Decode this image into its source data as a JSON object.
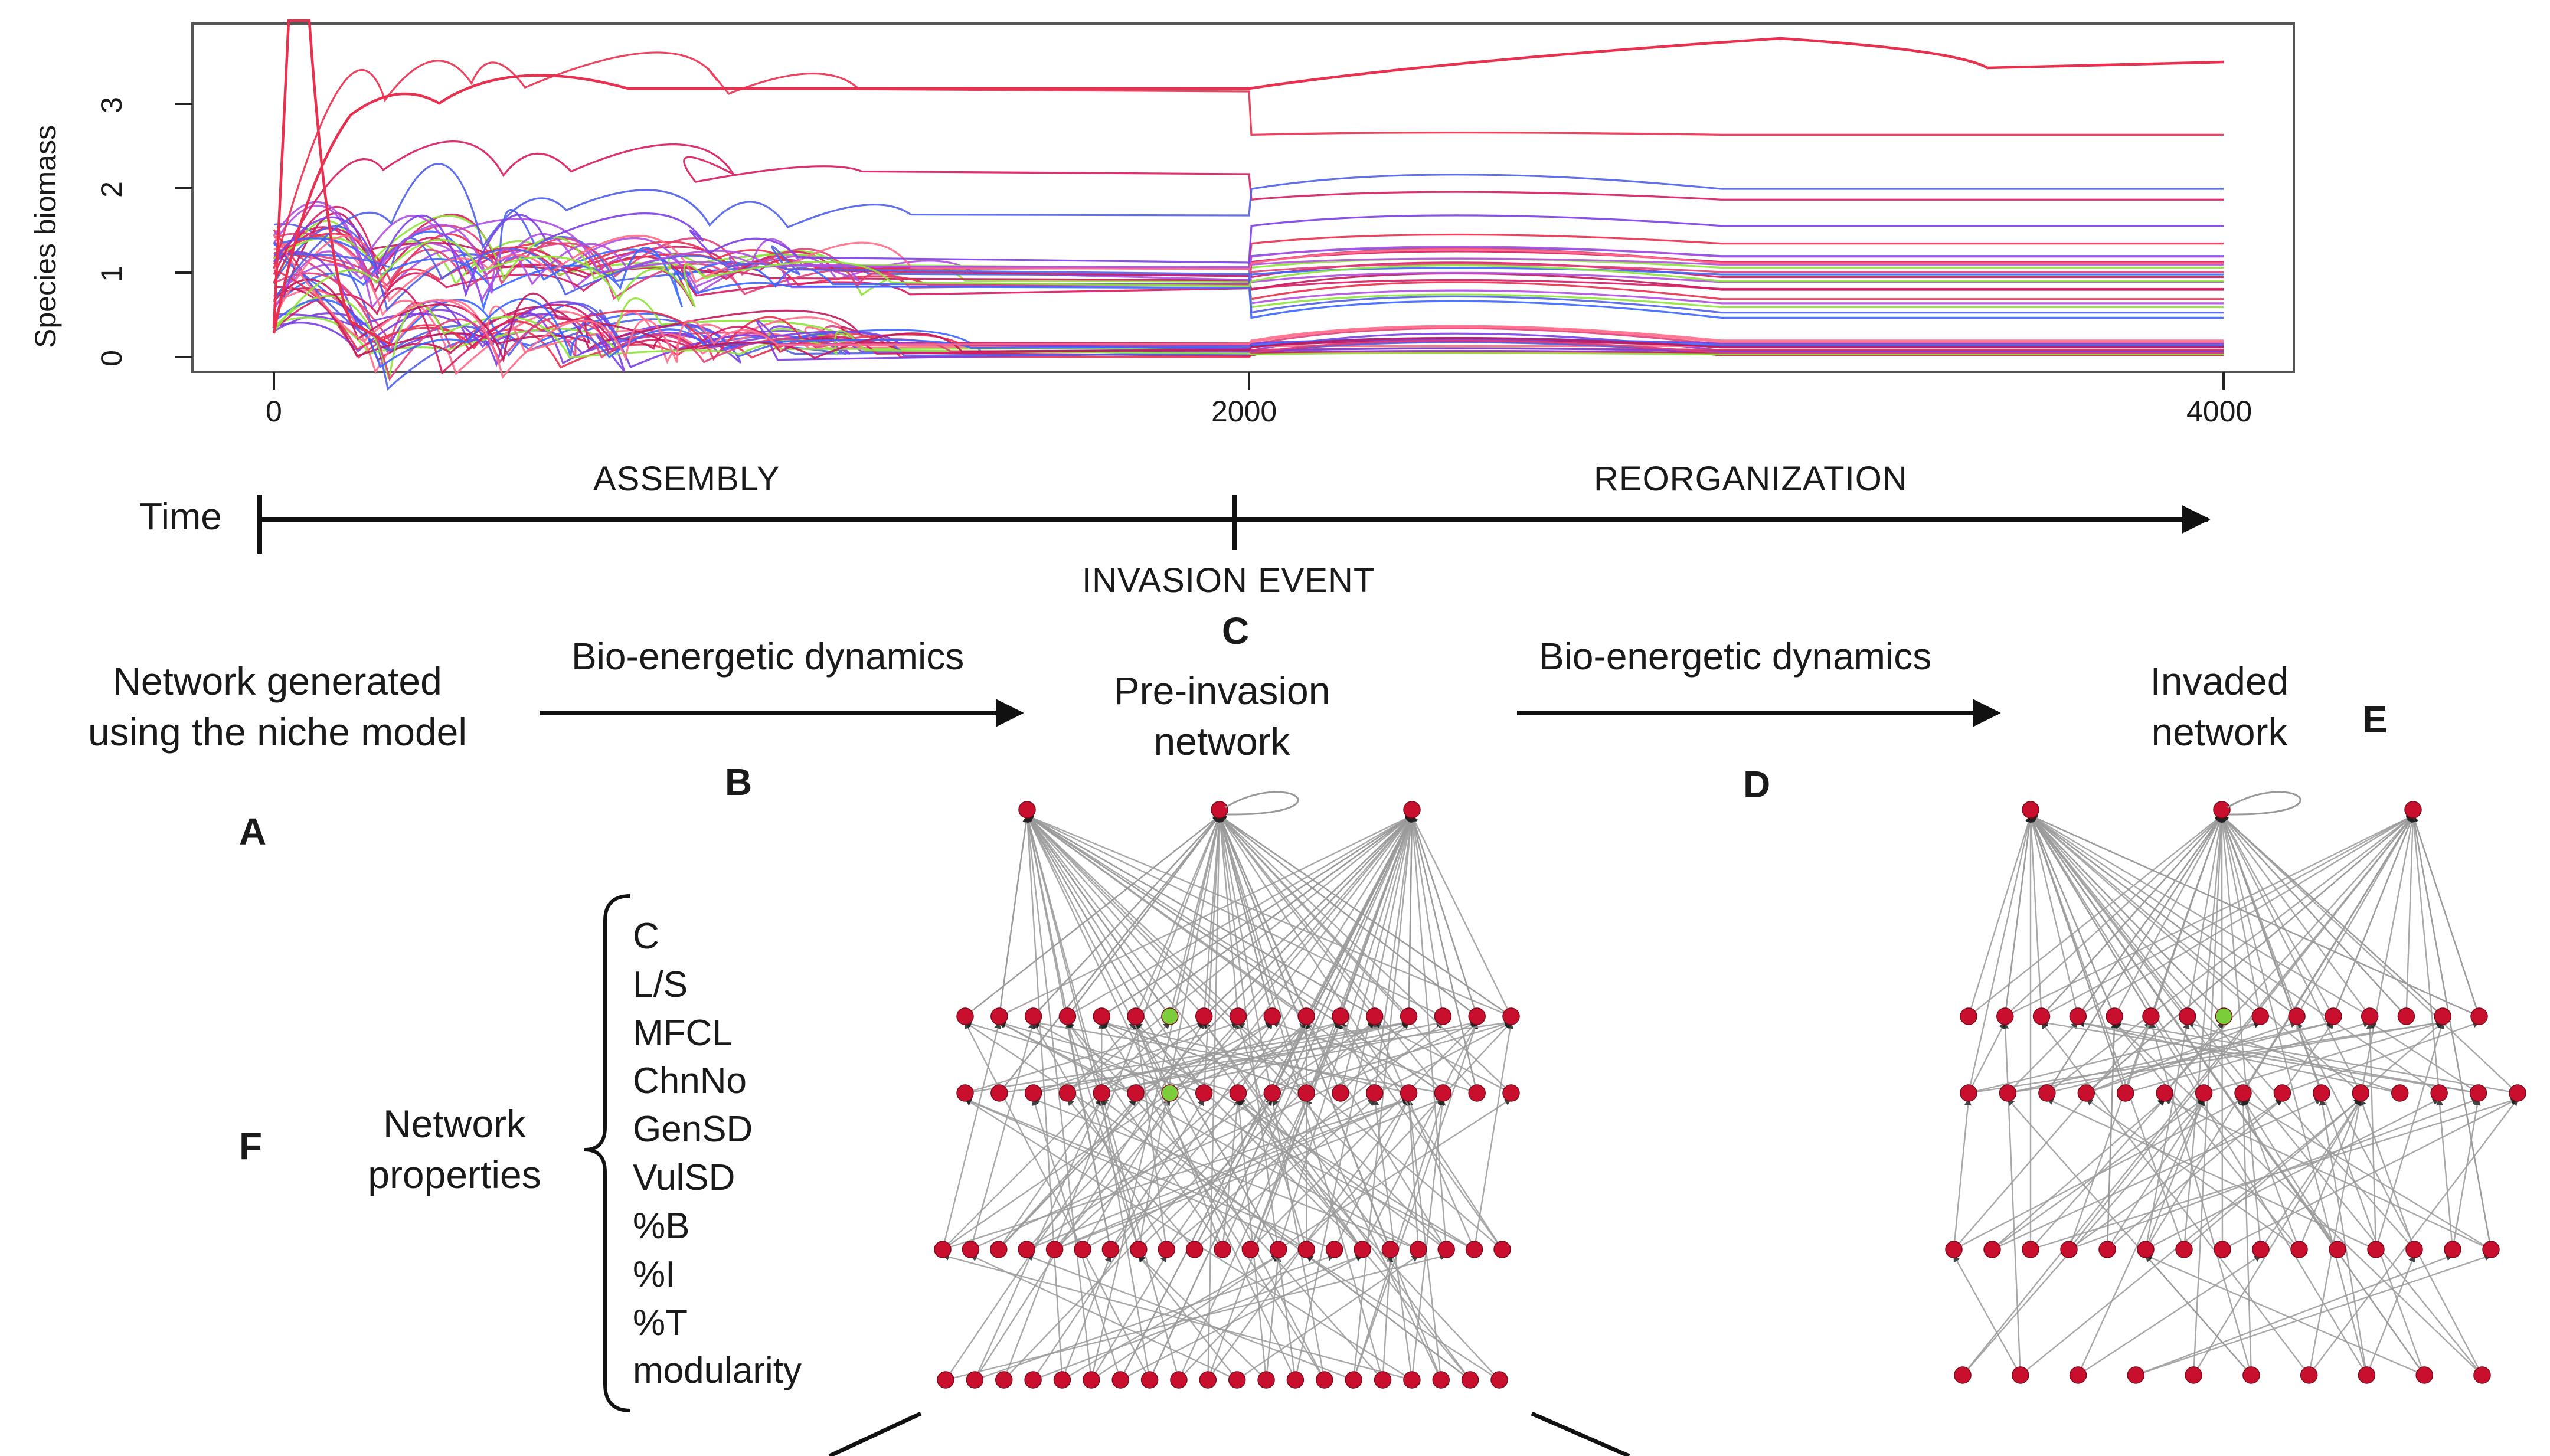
{
  "plot": {
    "ylabel": "Species biomass",
    "y_ticks": [
      "0",
      "1",
      "2",
      "3"
    ],
    "x_ticks": [
      "0",
      "2000",
      "4000"
    ]
  },
  "timeline": {
    "time_label": "Time",
    "phase_assembly": "ASSEMBLY",
    "phase_reorganization": "REORGANIZATION",
    "invasion_label": "INVASION EVENT"
  },
  "panels": {
    "A": {
      "letter": "A",
      "caption_line1": "Network generated",
      "caption_line2": "using the niche model"
    },
    "B": {
      "letter": "B",
      "caption": "Bio-energetic dynamics"
    },
    "C": {
      "letter": "C",
      "caption_line1": "Pre-invasion",
      "caption_line2": "network"
    },
    "D": {
      "letter": "D",
      "caption": "Bio-energetic dynamics"
    },
    "E": {
      "letter": "E",
      "caption_line1": "Invaded",
      "caption_line2": "network"
    },
    "F": {
      "letter": "F",
      "caption_line1": "Network",
      "caption_line2": "properties",
      "properties": [
        "C",
        "L/S",
        "MFCL",
        "ChnNo",
        "GenSD",
        "VulSD",
        "%B",
        "%I",
        "%T",
        "modularity"
      ]
    }
  },
  "colors": {
    "node": "#c8102e",
    "invader_node": "#7ccd3a",
    "edge": "#9a9a9a",
    "series_palette": [
      "#e8304f",
      "#d81b60",
      "#4f5fe8",
      "#7b3fe4",
      "#8fe43a",
      "#e0407a",
      "#3a66ff",
      "#c2185b",
      "#b04fe0",
      "#ff6b8a"
    ]
  }
}
